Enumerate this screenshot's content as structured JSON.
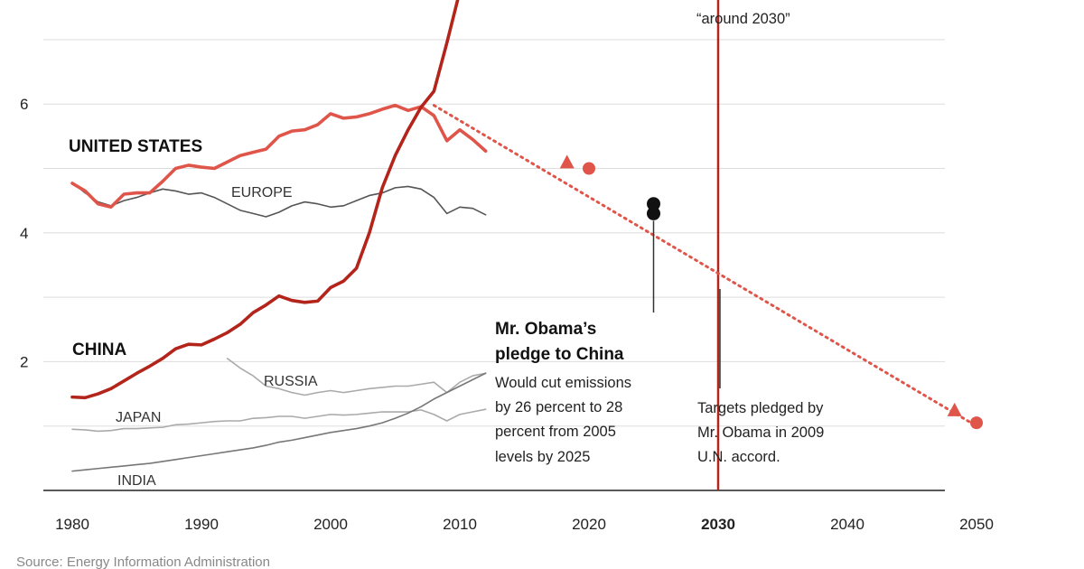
{
  "chart_data": {
    "type": "line",
    "title": "",
    "xlabel": "",
    "ylabel": "",
    "xlim": [
      1978,
      2052
    ],
    "ylim": [
      0,
      7.7
    ],
    "x_ticks": [
      1980,
      1990,
      2000,
      2010,
      2020,
      2030,
      2040,
      2050
    ],
    "x_tick_labels": [
      "1980",
      "1990",
      "2000",
      "2010",
      "2020",
      "2030",
      "2040",
      "2050"
    ],
    "x_tick_bold": [
      2030
    ],
    "y_ticks": [
      2,
      4,
      6
    ],
    "y_tick_labels": [
      "2",
      "4",
      "6"
    ],
    "gridlines_y": [
      1,
      2,
      3,
      4,
      5,
      6,
      7
    ],
    "grid": true,
    "series": [
      {
        "name": "UNITED STATES",
        "color": "#e0554a",
        "x": [
          1980,
          1981,
          1982,
          1983,
          1984,
          1985,
          1986,
          1987,
          1988,
          1989,
          1990,
          1991,
          1992,
          1993,
          1994,
          1995,
          1996,
          1997,
          1998,
          1999,
          2000,
          2001,
          2002,
          2003,
          2004,
          2005,
          2006,
          2007,
          2008,
          2009,
          2010,
          2011,
          2012
        ],
        "y": [
          4.77,
          4.65,
          4.45,
          4.4,
          4.6,
          4.62,
          4.62,
          4.8,
          5.0,
          5.05,
          5.02,
          5.0,
          5.1,
          5.2,
          5.25,
          5.3,
          5.5,
          5.58,
          5.6,
          5.68,
          5.85,
          5.78,
          5.8,
          5.85,
          5.92,
          5.98,
          5.9,
          5.96,
          5.82,
          5.43,
          5.6,
          5.45,
          5.27
        ]
      },
      {
        "name": "CHINA",
        "color": "#b3241b",
        "x": [
          1980,
          1981,
          1982,
          1983,
          1984,
          1985,
          1986,
          1987,
          1988,
          1989,
          1990,
          1991,
          1992,
          1993,
          1994,
          1995,
          1996,
          1997,
          1998,
          1999,
          2000,
          2001,
          2002,
          2003,
          2004,
          2005,
          2006,
          2007,
          2008,
          2009,
          2010
        ],
        "y": [
          1.45,
          1.44,
          1.5,
          1.58,
          1.7,
          1.82,
          1.93,
          2.05,
          2.2,
          2.27,
          2.26,
          2.35,
          2.45,
          2.58,
          2.76,
          2.88,
          3.02,
          2.95,
          2.92,
          2.94,
          3.15,
          3.25,
          3.45,
          4.0,
          4.7,
          5.2,
          5.6,
          5.95,
          6.2,
          6.95,
          7.75
        ]
      },
      {
        "name": "EUROPE",
        "color": "#555555",
        "x": [
          1980,
          1981,
          1982,
          1983,
          1984,
          1985,
          1986,
          1987,
          1988,
          1989,
          1990,
          1991,
          1992,
          1993,
          1994,
          1995,
          1996,
          1997,
          1998,
          1999,
          2000,
          2001,
          2002,
          2003,
          2004,
          2005,
          2006,
          2007,
          2008,
          2009,
          2010,
          2011,
          2012
        ],
        "y": [
          4.78,
          4.62,
          4.48,
          4.42,
          4.5,
          4.55,
          4.62,
          4.68,
          4.65,
          4.6,
          4.62,
          4.55,
          4.45,
          4.35,
          4.3,
          4.25,
          4.32,
          4.42,
          4.48,
          4.45,
          4.4,
          4.42,
          4.5,
          4.58,
          4.62,
          4.7,
          4.72,
          4.68,
          4.55,
          4.3,
          4.4,
          4.38,
          4.28
        ]
      },
      {
        "name": "RUSSIA",
        "color": "#aaaaaa",
        "x": [
          1992,
          1993,
          1994,
          1995,
          1996,
          1997,
          1998,
          1999,
          2000,
          2001,
          2002,
          2003,
          2004,
          2005,
          2006,
          2007,
          2008,
          2009,
          2010,
          2011,
          2012
        ],
        "y": [
          2.05,
          1.9,
          1.78,
          1.62,
          1.58,
          1.52,
          1.48,
          1.52,
          1.55,
          1.52,
          1.55,
          1.58,
          1.6,
          1.62,
          1.62,
          1.65,
          1.68,
          1.52,
          1.68,
          1.78,
          1.82
        ]
      },
      {
        "name": "JAPAN",
        "color": "#aaaaaa",
        "x": [
          1980,
          1981,
          1982,
          1983,
          1984,
          1985,
          1986,
          1987,
          1988,
          1989,
          1990,
          1991,
          1992,
          1993,
          1994,
          1995,
          1996,
          1997,
          1998,
          1999,
          2000,
          2001,
          2002,
          2003,
          2004,
          2005,
          2006,
          2007,
          2008,
          2009,
          2010,
          2011,
          2012
        ],
        "y": [
          0.95,
          0.94,
          0.92,
          0.93,
          0.96,
          0.96,
          0.97,
          0.98,
          1.02,
          1.03,
          1.05,
          1.07,
          1.08,
          1.08,
          1.12,
          1.13,
          1.15,
          1.15,
          1.12,
          1.15,
          1.18,
          1.17,
          1.18,
          1.2,
          1.22,
          1.22,
          1.22,
          1.25,
          1.18,
          1.08,
          1.18,
          1.22,
          1.26
        ]
      },
      {
        "name": "INDIA",
        "color": "#777777",
        "x": [
          1980,
          1981,
          1982,
          1983,
          1984,
          1985,
          1986,
          1987,
          1988,
          1989,
          1990,
          1991,
          1992,
          1993,
          1994,
          1995,
          1996,
          1997,
          1998,
          1999,
          2000,
          2001,
          2002,
          2003,
          2004,
          2005,
          2006,
          2007,
          2008,
          2009,
          2010,
          2011,
          2012
        ],
        "y": [
          0.3,
          0.32,
          0.34,
          0.36,
          0.38,
          0.4,
          0.42,
          0.45,
          0.48,
          0.51,
          0.54,
          0.57,
          0.6,
          0.63,
          0.66,
          0.7,
          0.75,
          0.78,
          0.82,
          0.86,
          0.9,
          0.93,
          0.96,
          1.0,
          1.05,
          1.12,
          1.2,
          1.3,
          1.42,
          1.52,
          1.62,
          1.72,
          1.82
        ]
      }
    ],
    "projection": {
      "color": "#e0554a",
      "style": "dotted",
      "x": [
        2008,
        2050
      ],
      "y": [
        5.98,
        1.0
      ],
      "triangles": [
        {
          "x": 2018.3,
          "y": 5.1
        },
        {
          "x": 2048.3,
          "y": 1.25
        }
      ],
      "circles": [
        {
          "x": 2020,
          "y": 5.0
        },
        {
          "x": 2050,
          "y": 1.05
        }
      ]
    },
    "pledge_points": [
      {
        "x": 2025,
        "y": 4.45,
        "color": "#111111"
      },
      {
        "x": 2025,
        "y": 4.3,
        "color": "#111111"
      }
    ],
    "vline": {
      "x": 2030,
      "color": "#b3241b"
    },
    "labels": {
      "us": "UNITED STATES",
      "china": "CHINA",
      "europe": "EUROPE",
      "russia": "RUSSIA",
      "japan": "JAPAN",
      "india": "INDIA"
    },
    "annotations": {
      "china_peak_tail": "“around 2030”",
      "obama_title": [
        "Mr. Obama’s",
        "pledge to China"
      ],
      "obama_body": [
        "Would cut emissions",
        "by 26 percent to 28",
        "percent from 2005",
        "levels by 2025"
      ],
      "targets": [
        "Targets pledged by",
        "Mr. Obama in 2009",
        "U.N. accord."
      ]
    },
    "source": "Source: Energy Information Administration"
  }
}
